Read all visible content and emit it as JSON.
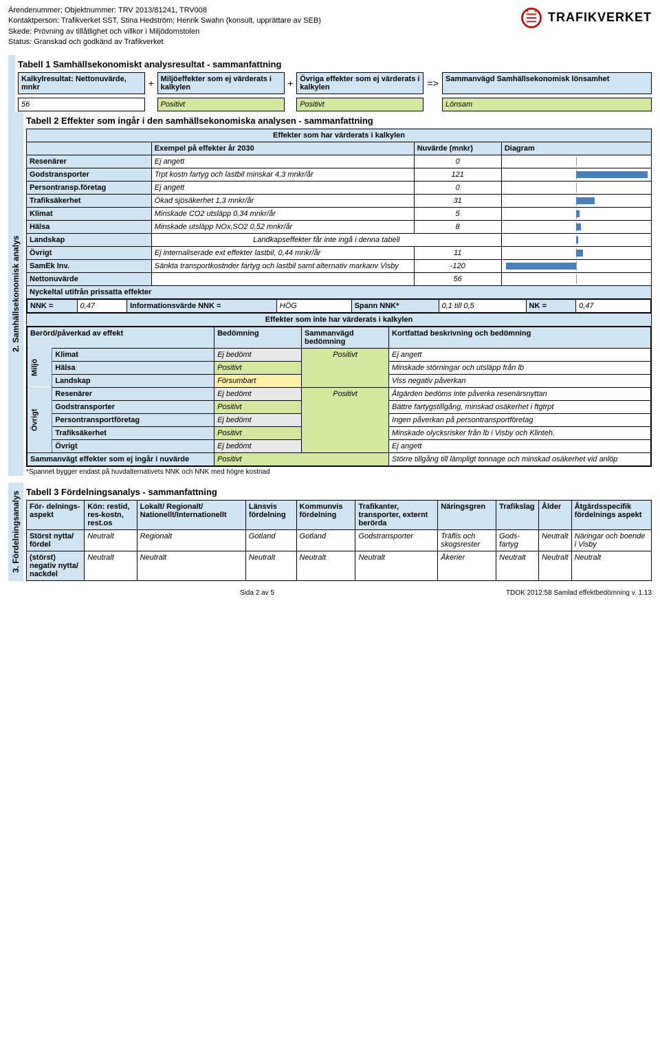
{
  "header": {
    "l1": "Ärendenummer; Objektnummer: TRV 2013/81241, TRV008",
    "l2": "Kontaktperson: Trafikverket SST, Stina Hedström; Henrik Swahn (konsult, upprättare av SEB)",
    "l3": "Skede: Prövning av tillåtlighet och villkor i Miljödomstolen",
    "l4": "Status: Granskad och godkänd av Trafikverket",
    "logo": "TRAFIKVERKET"
  },
  "sidebar2": "2. Samhällsekonomisk analys",
  "sidebar3": "3. Fördelningsanalys",
  "t1": {
    "title": "Tabell 1 Samhällsekonomiskt analysresultat - sammanfattning",
    "c1": "Kalkylresultat: Nettonuvärde, mnkr",
    "c2": "Miljöeffekter som ej värderats i kalkylen",
    "c3": "Övriga effekter som ej värderats i kalkylen",
    "c4": "Sammanvägd Samhällsekonomisk lönsamhet",
    "v1": "56",
    "v2": "Positivt",
    "v3": "Positivt",
    "v4": "Lönsam"
  },
  "t2": {
    "title": "Tabell 2 Effekter som ingår i den samhällsekonomiska analysen - sammanfattning",
    "sub1": "Effekter som har värderats i kalkylen",
    "h1": "Exempel på effekter år  2030",
    "h2": "Nuvärde (mnkr)",
    "h3": "Diagram",
    "rows": [
      {
        "k": "Resenärer",
        "e": "Ej angett",
        "v": "0",
        "bar": 0
      },
      {
        "k": "Godstransporter",
        "e": "Trpt kostn fartyg och lastbil minskar 4,3 mnkr/år",
        "v": "121",
        "bar": 121
      },
      {
        "k": "Persontransp.företag",
        "e": "Ej angett",
        "v": "0",
        "bar": 0
      },
      {
        "k": "Trafiksäkerhet",
        "e": "Ökad sjösäkerhet 1,3 mnkr/år",
        "v": "31",
        "bar": 31
      },
      {
        "k": "Klimat",
        "e": "Minskade CO2 utsläpp 0,34 mnkr/år",
        "v": "5",
        "bar": 5
      },
      {
        "k": "Hälsa",
        "e": "Minskade utsläpp NOx,SO2 0,52 mnkr/år",
        "v": "8",
        "bar": 8
      },
      {
        "k": "Landskap",
        "e": "Landkapseffekter får inte ingå i denna tabell",
        "v": "",
        "bar": 3,
        "merged": true
      },
      {
        "k": "Övrigt",
        "e": "Ej internaliserade ext effekter lastbil, 0,44 mnkr/år",
        "v": "11",
        "bar": 11
      },
      {
        "k": "SamEk Inv.",
        "e": "Sänkta transportkostnder fartyg och lastbil samt alternativ markanv Visby",
        "v": "-120",
        "bar": -120
      }
    ],
    "netto_k": "Nettonuvärde",
    "netto_v": "56",
    "nyckel": "Nyckeltal utifrån prissatta effekter",
    "nnk_l": "NNK =",
    "nnk_v": "0,47",
    "info_l": "Informationsvärde NNK =",
    "info_v": "HÖG",
    "spann_l": "Spann NNK*",
    "spann_v": "0,1 till 0,5",
    "nk_l": "NK =",
    "nk_v": "0,47",
    "sub2": "Effekter som inte har värderats i kalkylen",
    "eh1": "Berörd/påverkad av effekt",
    "eh2": "Bedömning",
    "eh3": "Sammanvägd bedömning",
    "eh4": "Kortfattad beskrivning och bedömning",
    "miljo_l": "Miljö",
    "ovrigt_l": "Övrigt",
    "er": [
      {
        "g": "m",
        "k": "Klimat",
        "b": "Ej bedömt",
        "bc": "g",
        "d": "Ej angett"
      },
      {
        "g": "m",
        "k": "Hälsa",
        "b": "Positivt",
        "bc": "gr",
        "d": "Minskade störningar och utsläpp från lb"
      },
      {
        "g": "m",
        "k": "Landskap",
        "b": "Försumbart",
        "bc": "y",
        "d": "Viss negativ påverkan"
      },
      {
        "g": "o",
        "k": "Resenärer",
        "b": "Ej bedömt",
        "bc": "g",
        "d": "Åtgärden bedöms inte påverka resenärsnyttan"
      },
      {
        "g": "o",
        "k": "Godstransporter",
        "b": "Positivt",
        "bc": "gr",
        "d": "Bättre fartygstillgång, minskad osäkerhet i ftgtrpt"
      },
      {
        "g": "o",
        "k": "Persontransportföretag",
        "b": "Ej bedömt",
        "bc": "g",
        "d": "Ingen påverkan på persontransportföretag"
      },
      {
        "g": "o",
        "k": "Trafiksäkerhet",
        "b": "Positivt",
        "bc": "gr",
        "d": "Minskade olycksrisker från lb i Visby och Klinteh."
      },
      {
        "g": "o",
        "k": "Övrigt",
        "b": "Ej bedömt",
        "bc": "g",
        "d": "Ej angett"
      }
    ],
    "sv_m": "Positivt",
    "sv_o": "Positivt",
    "sum_l": "Sammanvägt effekter som ej ingår i nuvärde",
    "sum_v": "Positivt",
    "sum_d": "Större tillgång till lämpligt tonnage och minskad osäkerhet vid anlöp",
    "note": "*Spannet bygger endast på huvdalternativets NNK och NNK med högre kostnad"
  },
  "t3": {
    "title": "Tabell 3 Fördelningsanalys - sammanfattning",
    "h": [
      "För- delnings-aspekt",
      "Kön: restid, res-kostn, rest.os",
      "Lokalt/ Regionalt/ Nationellt/Internationellt",
      "Länsvis fördelning",
      "Kommunvis fördelning",
      "Trafikanter, transporter, externt berörda",
      "Näringsgren",
      "Trafikslag",
      "Ålder",
      "Åtgärdsspecifik fördelnings aspekt"
    ],
    "r1": [
      "Störst nytta/ fördel",
      "Neutralt",
      "Regionalt",
      "Gotland",
      "Gotland",
      "Godstransporter",
      "Träflis och skogsrester",
      "Gods-fartyg",
      "Neutralt",
      "Näringar och boende i Visby"
    ],
    "r2": [
      "(störst) negativ nytta/ nackdel",
      "Neutralt",
      "Neutralt",
      "Neutralt",
      "Neutralt",
      "Neutralt",
      "Åkerier",
      "Neutralt",
      "Neutralt",
      "Neutralt"
    ]
  },
  "footer": {
    "c": "Sida 2 av 5",
    "r": "TDOK 2012:58 Samlad effektbedömning v. 1.13"
  },
  "chart": {
    "max": 125,
    "color": "#4a7fb8"
  }
}
